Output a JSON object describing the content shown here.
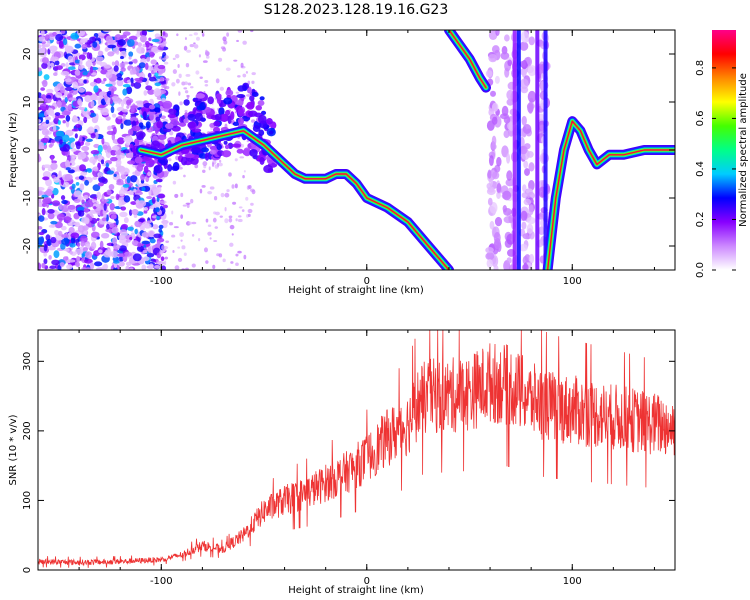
{
  "figure_title": "S128.2023.128.19.16.G23",
  "chart_data": [
    {
      "type": "heatmap",
      "xlabel": "Height of straight line (km)",
      "ylabel": "Frequency (Hz)",
      "xlim": [
        -160,
        150
      ],
      "ylim": [
        -25,
        25
      ],
      "x_ticks": [
        -100,
        0,
        100
      ],
      "y_ticks": [
        -20,
        -10,
        0,
        10,
        20
      ],
      "colorbar": {
        "label": "Normalized spectral amplitude",
        "range": [
          0.0,
          0.95
        ],
        "ticks": [
          0.0,
          0.2,
          0.4,
          0.6,
          0.8
        ],
        "colormap": [
          "#ffffff",
          "#cc88ff",
          "#8800ff",
          "#0000ff",
          "#00ccff",
          "#00ff88",
          "#44ff00",
          "#ffff00",
          "#ff8800",
          "#ff0000",
          "#ff0088"
        ]
      },
      "ridge_trace": {
        "x": [
          -110,
          -100,
          -90,
          -80,
          -70,
          -60,
          -50,
          -45,
          -40,
          -35,
          -30,
          -25,
          -20,
          -15,
          -10,
          -5,
          0,
          10,
          20,
          30,
          40
        ],
        "y": [
          0,
          -1,
          1,
          2,
          3,
          4,
          1,
          -1,
          -3,
          -5,
          -6,
          -6,
          -6,
          -5,
          -5,
          -7,
          -10,
          -12,
          -15,
          -20,
          -25
        ]
      },
      "upper_trace": {
        "x": [
          40,
          45,
          50,
          55,
          58
        ],
        "y": [
          25,
          22,
          19,
          15,
          13
        ]
      },
      "right_trace": {
        "x": [
          88,
          92,
          96,
          100,
          104,
          108,
          112,
          118,
          125,
          135,
          150
        ],
        "y": [
          -25,
          -10,
          0,
          6,
          4,
          0,
          -3,
          -1,
          -1,
          0,
          0
        ]
      }
    },
    {
      "type": "line",
      "xlabel": "Height of straight line (km)",
      "ylabel": "SNR (10 * v/v)",
      "xlim": [
        -160,
        150
      ],
      "ylim": [
        0,
        345
      ],
      "x_ticks": [
        -100,
        0,
        100
      ],
      "y_ticks": [
        0,
        100,
        200,
        300
      ],
      "color": "#ee3333",
      "envelope": {
        "x": [
          -160,
          -140,
          -120,
          -100,
          -90,
          -80,
          -70,
          -60,
          -50,
          -40,
          -30,
          -20,
          -10,
          0,
          10,
          20,
          25,
          30,
          40,
          50,
          60,
          70,
          80,
          90,
          100,
          110,
          120,
          130,
          140,
          150
        ],
        "y": [
          12,
          11,
          12,
          15,
          22,
          35,
          30,
          50,
          85,
          100,
          110,
          125,
          140,
          160,
          190,
          210,
          240,
          250,
          250,
          255,
          270,
          265,
          245,
          235,
          230,
          225,
          220,
          215,
          210,
          205
        ]
      }
    }
  ]
}
